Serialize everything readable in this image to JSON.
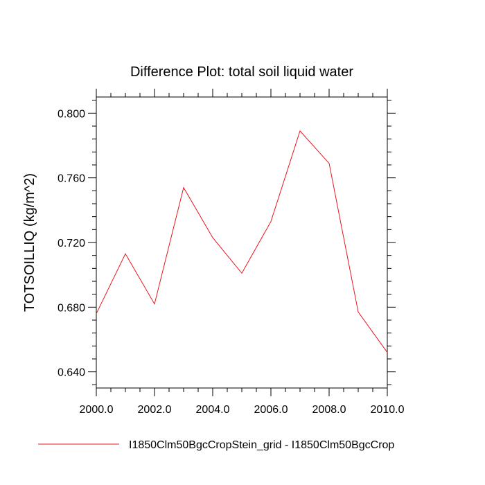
{
  "chart_data": {
    "type": "line",
    "title": "Difference Plot: total soil liquid water",
    "xlabel": "",
    "ylabel": "TOTSOILLIQ  (kg/m^2)",
    "xlim": [
      2000,
      2010
    ],
    "ylim": [
      0.63,
      0.81
    ],
    "x_ticks": [
      2000,
      2002,
      2004,
      2006,
      2008,
      2010
    ],
    "x_tick_labels": [
      "2000.0",
      "2002.0",
      "2004.0",
      "2006.0",
      "2008.0",
      "2010.0"
    ],
    "y_ticks": [
      0.64,
      0.68,
      0.72,
      0.76,
      0.8
    ],
    "y_tick_labels": [
      "0.640",
      "0.680",
      "0.720",
      "0.760",
      "0.800"
    ],
    "series": [
      {
        "name": "I1850Clm50BgcCropStein_grid - I1850Clm50BgcCrop",
        "color": "#e8141e",
        "x": [
          2000,
          2001,
          2002,
          2003,
          2004,
          2005,
          2006,
          2007,
          2008,
          2009,
          2010
        ],
        "values": [
          0.676,
          0.713,
          0.682,
          0.754,
          0.723,
          0.701,
          0.733,
          0.789,
          0.769,
          0.677,
          0.652
        ]
      }
    ],
    "legend_position": "bottom",
    "grid": false
  }
}
